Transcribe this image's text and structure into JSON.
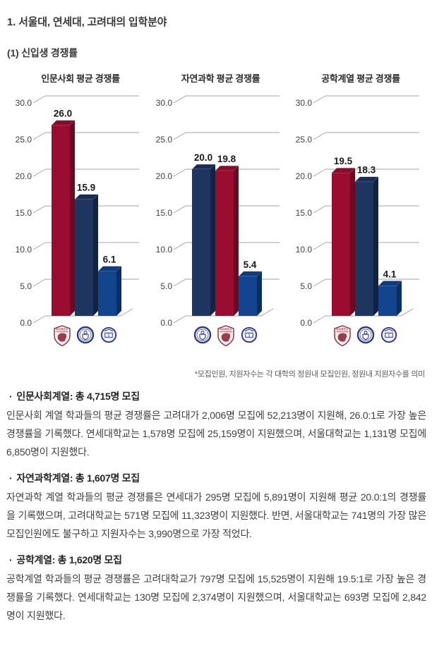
{
  "page": {
    "title": "1. 서울대, 연세대, 고려대의 입학분야",
    "subtitle": "(1) 신입생 경쟁률",
    "footnote": "*모집인원, 지원자수는 각 대학의 정원내 모집인원, 정원내 지원자수를 의미"
  },
  "universities": {
    "korea": {
      "name": "고려대학교",
      "logo": "korea-university-logo",
      "bar_color": "#9A0C30",
      "bar_top_color": "#8A0B2B",
      "bar_side_color": "#6C081F",
      "logo_color": "#8E2A3C"
    },
    "yonsei": {
      "name": "연세대학교",
      "logo": "yonsei-university-logo",
      "bar_color": "#1E3560",
      "bar_top_color": "#1A2E54",
      "bar_side_color": "#122342",
      "logo_color": "#2D3A8C"
    },
    "snu": {
      "name": "서울대학교",
      "logo": "seoul-national-university-logo",
      "bar_color": "#12458E",
      "bar_top_color": "#0F3C7C",
      "bar_side_color": "#0C2F63",
      "logo_color": "#2D3A8C"
    }
  },
  "chart_data": [
    {
      "type": "bar",
      "title": "인문사회 평균 경쟁률",
      "categories": [
        "고려대",
        "연세대",
        "서울대"
      ],
      "values": [
        26.0,
        15.9,
        6.1
      ],
      "bars": [
        {
          "university": "korea",
          "value": 26.0,
          "label": "26.0"
        },
        {
          "university": "yonsei",
          "value": 15.9,
          "label": "15.9"
        },
        {
          "university": "snu",
          "value": 6.1,
          "label": "6.1"
        }
      ],
      "ylim": [
        0,
        30
      ],
      "ytick_step": 5,
      "yticks": [
        "0.0",
        "5.0",
        "10.0",
        "15.0",
        "20.0",
        "25.0",
        "30.0"
      ],
      "grid": true,
      "legend": "none",
      "style": "3d-bar"
    },
    {
      "type": "bar",
      "title": "자연과학 평균 경쟁률",
      "categories": [
        "연세대",
        "고려대",
        "서울대"
      ],
      "values": [
        20.0,
        19.8,
        5.4
      ],
      "bars": [
        {
          "university": "yonsei",
          "value": 20.0,
          "label": "20.0"
        },
        {
          "university": "korea",
          "value": 19.8,
          "label": "19.8"
        },
        {
          "university": "snu",
          "value": 5.4,
          "label": "5.4"
        }
      ],
      "ylim": [
        0,
        30
      ],
      "ytick_step": 5,
      "yticks": [
        "0.0",
        "5.0",
        "10.0",
        "15.0",
        "20.0",
        "25.0",
        "30.0"
      ],
      "grid": true,
      "legend": "none",
      "style": "3d-bar"
    },
    {
      "type": "bar",
      "title": "공학계열 평균 경쟁률",
      "categories": [
        "고려대",
        "연세대",
        "서울대"
      ],
      "values": [
        19.5,
        18.3,
        4.1
      ],
      "bars": [
        {
          "university": "korea",
          "value": 19.5,
          "label": "19.5"
        },
        {
          "university": "yonsei",
          "value": 18.3,
          "label": "18.3"
        },
        {
          "university": "snu",
          "value": 4.1,
          "label": "4.1"
        }
      ],
      "ylim": [
        0,
        30
      ],
      "ytick_step": 5,
      "yticks": [
        "0.0",
        "5.0",
        "10.0",
        "15.0",
        "20.0",
        "25.0",
        "30.0"
      ],
      "grid": true,
      "legend": "none",
      "style": "3d-bar"
    }
  ],
  "sections": [
    {
      "bullet": "·",
      "heading": "인문사회계열: 총 4,715명 모집",
      "body": "인문사회 계열 학과들의 평균 경쟁률은 고려대가 2,006명 모집에 52,213명이 지원해, 26.0:1로 가장 높은 경쟁률을 기록했다. 연세대학교는 1,578명 모집에 25,159명이 지원했으며, 서울대학교는 1,131명 모집에 6,850명이 지원했다."
    },
    {
      "bullet": "·",
      "heading": "자연과학계열: 총 1,607명 모집",
      "body": "자연과학 계열 학과들의 평균 경쟁률은 연세대가 295명 모집에 5,891명이 지원해 평균 20.0:1의 경쟁률을 기록했으며, 고려대학교는 571명 모집에 11,323명이 지원했다. 반면, 서울대학교는 741명의 가장 많은 모집인원에도 불구하고 지원자수는 3,990명으로 가장 적었다."
    },
    {
      "bullet": "·",
      "heading": "공학계열: 총 1,620명 모집",
      "body": "공학계열 학과들의 평균 경쟁률은 고려대학교가 797명 모집에 15,525명이 지원해 19.5:1로 가장 높은 경쟁률을 기록했다. 연세대학교는 130명 모집에 2,374명이 지원했으며, 서울대학교는 693명 모집에 2,842명이 지원했다."
    }
  ]
}
